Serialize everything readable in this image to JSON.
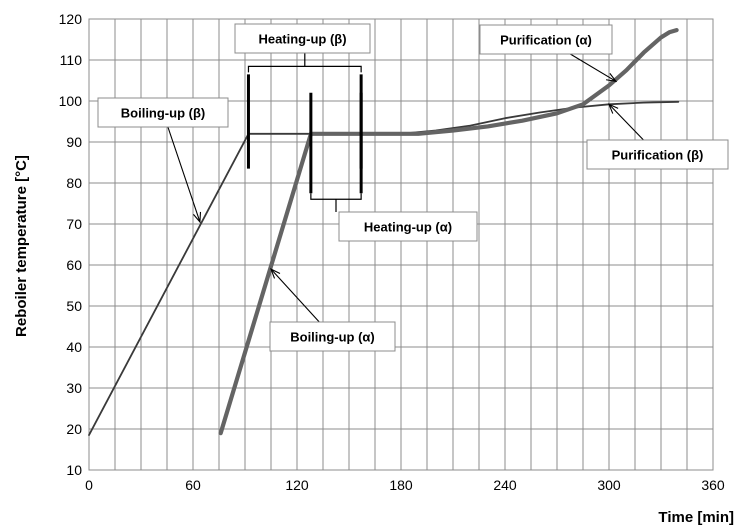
{
  "chart_data": {
    "type": "line",
    "title": "",
    "xlabel": "Time [min]",
    "ylabel": "Reboiler temperature [°C]",
    "xlim": [
      0,
      360
    ],
    "ylim": [
      10,
      120
    ],
    "xticks": [
      0,
      60,
      120,
      180,
      240,
      300,
      360
    ],
    "yticks": [
      10,
      20,
      30,
      40,
      50,
      60,
      70,
      80,
      90,
      100,
      110,
      120
    ],
    "grid": true,
    "series": [
      {
        "color": "#3a3a3a",
        "x": [
          0,
          92,
          110,
          140,
          180,
          200,
          220,
          240,
          260,
          280,
          300,
          320,
          340
        ],
        "y": [
          18.5,
          92,
          92,
          92,
          92,
          92.8,
          94,
          95.8,
          97.2,
          98.4,
          99.2,
          99.6,
          99.8
        ]
      },
      {
        "color": "#646464",
        "x": [
          76,
          128,
          160,
          190,
          210,
          230,
          250,
          270,
          285,
          300,
          310,
          320,
          330,
          335,
          339
        ],
        "y": [
          19,
          92,
          92,
          92,
          92.8,
          93.8,
          95.2,
          97,
          99.2,
          103.8,
          107.5,
          111.8,
          115.5,
          116.8,
          117.3
        ]
      }
    ],
    "annotations": [
      {
        "text": "Heating-up (β)",
        "kind": "bracket-top",
        "x_from": 92,
        "x_to": 157,
        "y_from": 83.5,
        "y_to": 106.5
      },
      {
        "text": "Purification (α)",
        "arrow_to": [
          304,
          104.8
        ]
      },
      {
        "text": "Boiling-up (β)",
        "arrow_to": [
          64,
          70.5
        ]
      },
      {
        "text": "Purification (β)",
        "arrow_to": [
          300,
          99.2
        ]
      },
      {
        "text": "Heating-up (α)",
        "kind": "bracket-bottom",
        "x_from": 128,
        "x_to": 157,
        "y_from": 102,
        "y_to": 77.5
      },
      {
        "text": "Boiling-up (α)",
        "arrow_to": [
          105,
          59
        ]
      }
    ]
  }
}
